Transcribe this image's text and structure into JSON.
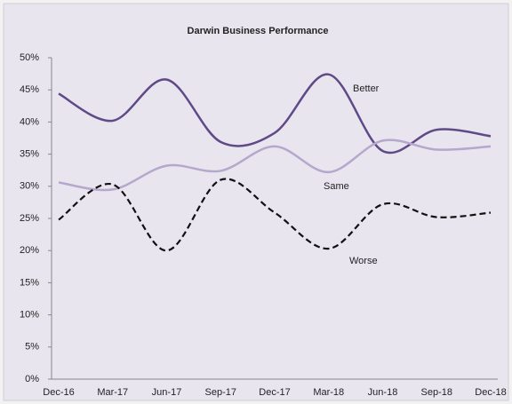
{
  "chart_data": {
    "type": "line",
    "title": "Darwin Business Performance",
    "categories": [
      "Dec-16",
      "Mar-17",
      "Jun-17",
      "Sep-17",
      "Dec-17",
      "Mar-18",
      "Jun-18",
      "Sep-18",
      "Dec-18"
    ],
    "series": [
      {
        "name": "Better",
        "color": "#5f4a87",
        "dash": false,
        "values": [
          44.4,
          40.2,
          46.6,
          36.9,
          38.3,
          47.4,
          35.5,
          38.8,
          37.8
        ]
      },
      {
        "name": "Same",
        "color": "#b4a8cc",
        "dash": false,
        "values": [
          30.6,
          29.5,
          33.2,
          32.4,
          36.2,
          32.2,
          37.1,
          35.7,
          36.2
        ]
      },
      {
        "name": "Worse",
        "color": "#111111",
        "dash": true,
        "values": [
          24.8,
          30.3,
          20.0,
          31.0,
          25.9,
          20.3,
          27.2,
          25.2,
          25.9
        ]
      }
    ],
    "ylim": [
      0,
      50
    ],
    "yticks": [
      {
        "value": 0,
        "label": "0%"
      },
      {
        "value": 5,
        "label": "5%"
      },
      {
        "value": 10,
        "label": "10%"
      },
      {
        "value": 15,
        "label": "15%"
      },
      {
        "value": 20,
        "label": "20%"
      },
      {
        "value": 25,
        "label": "25%"
      },
      {
        "value": 30,
        "label": "30%"
      },
      {
        "value": 35,
        "label": "35%"
      },
      {
        "value": 40,
        "label": "40%"
      },
      {
        "value": 45,
        "label": "45%"
      },
      {
        "value": 50,
        "label": "50%"
      }
    ],
    "grid": false
  }
}
